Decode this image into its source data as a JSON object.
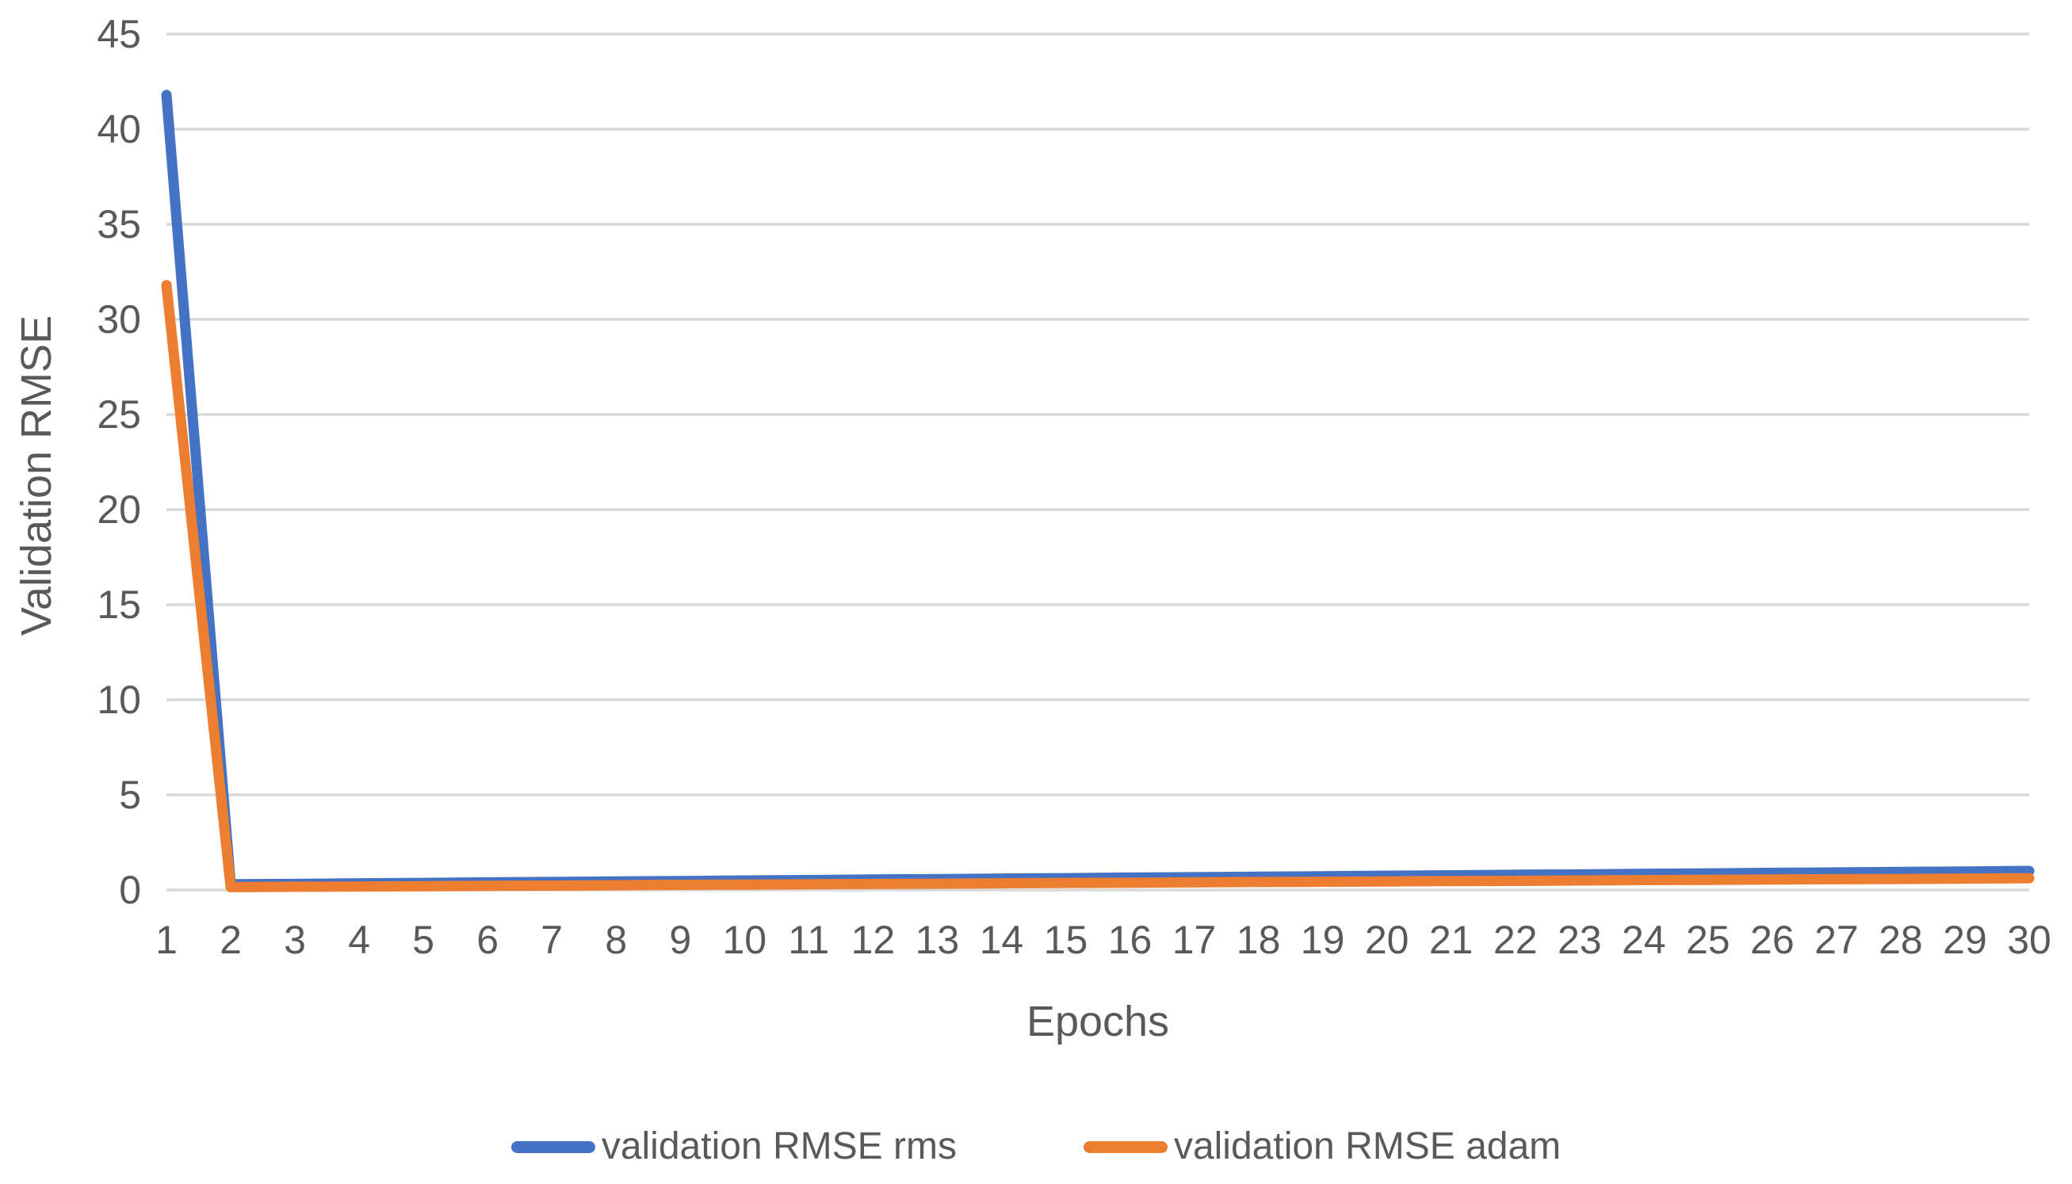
{
  "chart": {
    "colors": {
      "rms_series": "#4472C4",
      "adam_series": "#ED7D31",
      "gridline": "#D9D9D9",
      "text": "#595959"
    }
  },
  "chart_data": {
    "type": "line",
    "title": "",
    "xlabel": "Epochs",
    "ylabel": "Validation RMSE",
    "x": [
      1,
      2,
      3,
      4,
      5,
      6,
      7,
      8,
      9,
      10,
      11,
      12,
      13,
      14,
      15,
      16,
      17,
      18,
      19,
      20,
      21,
      22,
      23,
      24,
      25,
      26,
      27,
      28,
      29,
      30
    ],
    "y_ticks": [
      0,
      5,
      10,
      15,
      20,
      25,
      30,
      35,
      40,
      45
    ],
    "ylim": [
      0,
      45
    ],
    "grid": "horizontal",
    "legend_position": "bottom",
    "series": [
      {
        "name": "validation RMSE rms",
        "color": "#4472C4",
        "values": [
          41.8,
          0.3,
          0.32,
          0.35,
          0.37,
          0.4,
          0.42,
          0.45,
          0.47,
          0.5,
          0.52,
          0.55,
          0.57,
          0.6,
          0.62,
          0.65,
          0.67,
          0.7,
          0.72,
          0.75,
          0.77,
          0.8,
          0.82,
          0.85,
          0.87,
          0.9,
          0.92,
          0.95,
          0.97,
          1.0
        ]
      },
      {
        "name": "validation RMSE adam",
        "color": "#ED7D31",
        "values": [
          31.8,
          0.15,
          0.17,
          0.18,
          0.2,
          0.22,
          0.23,
          0.25,
          0.27,
          0.28,
          0.3,
          0.32,
          0.33,
          0.35,
          0.37,
          0.38,
          0.4,
          0.42,
          0.43,
          0.45,
          0.47,
          0.48,
          0.5,
          0.52,
          0.53,
          0.55,
          0.57,
          0.58,
          0.6,
          0.62
        ]
      }
    ]
  }
}
